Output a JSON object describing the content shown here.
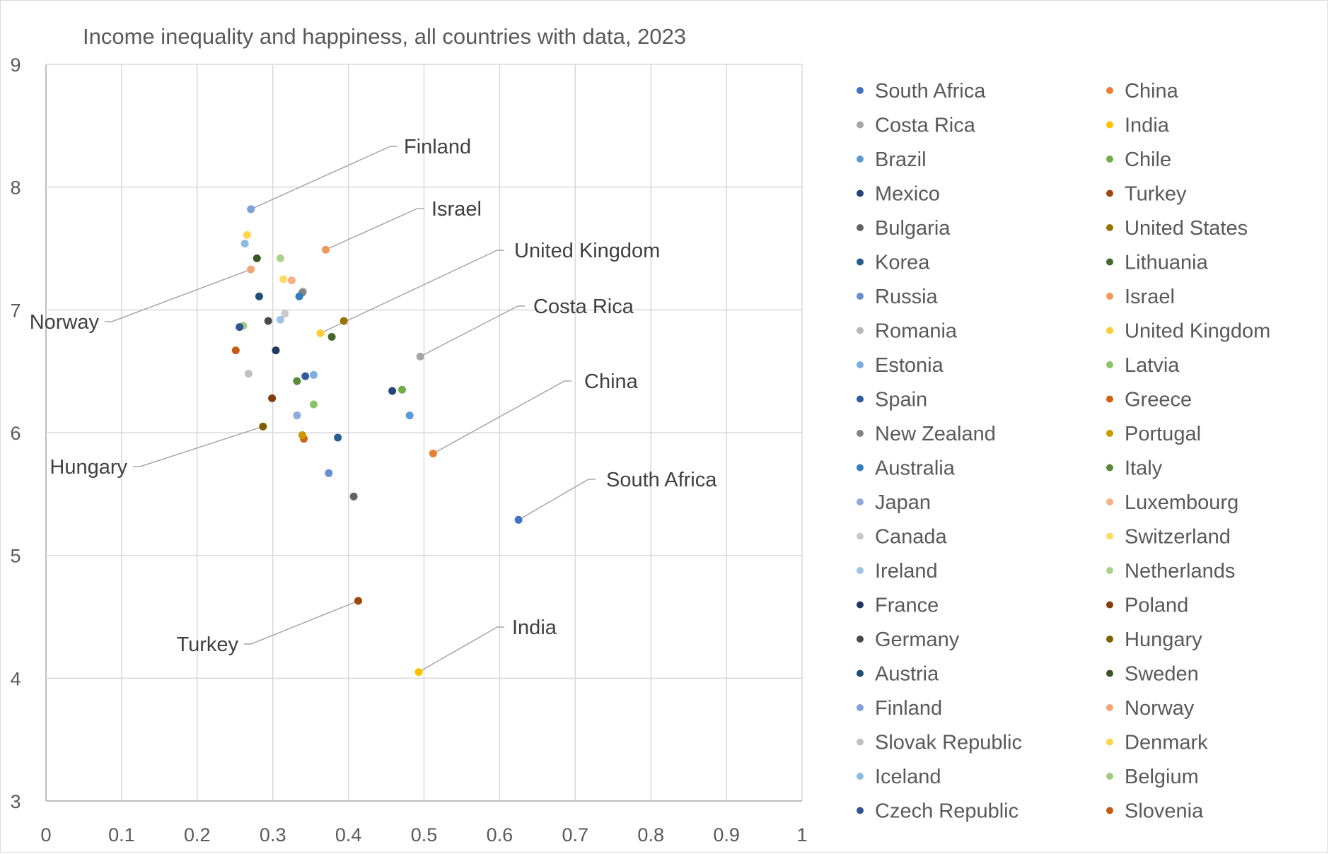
{
  "chart_data": {
    "type": "scatter",
    "title": "Income inequality and happiness, all countries with data, 2023",
    "xlabel": "",
    "ylabel": "",
    "xlim": [
      0,
      1
    ],
    "ylim": [
      3,
      9
    ],
    "x_ticks": [
      "0",
      "0.1",
      "0.2",
      "0.3",
      "0.4",
      "0.5",
      "0.6",
      "0.7",
      "0.8",
      "0.9",
      "1"
    ],
    "y_ticks": [
      "3",
      "4",
      "5",
      "6",
      "7",
      "8",
      "9"
    ],
    "grid": true,
    "legend_position": "right",
    "series": [
      {
        "name": "South Africa",
        "color": "#4472c4",
        "x": 0.625,
        "y": 5.29,
        "label": "South Africa"
      },
      {
        "name": "China",
        "color": "#ed7d31",
        "x": 0.512,
        "y": 5.83,
        "label": "China"
      },
      {
        "name": "Costa Rica",
        "color": "#a5a5a5",
        "x": 0.495,
        "y": 6.62,
        "label": "Costa Rica"
      },
      {
        "name": "India",
        "color": "#ffc000",
        "x": 0.493,
        "y": 4.05,
        "label": "India"
      },
      {
        "name": "Brazil",
        "color": "#5b9bd5",
        "x": 0.481,
        "y": 6.14
      },
      {
        "name": "Chile",
        "color": "#70ad47",
        "x": 0.471,
        "y": 6.35
      },
      {
        "name": "Mexico",
        "color": "#264478",
        "x": 0.458,
        "y": 6.34
      },
      {
        "name": "Turkey",
        "color": "#9e480e",
        "x": 0.413,
        "y": 4.63,
        "label": "Turkey"
      },
      {
        "name": "Bulgaria",
        "color": "#636363",
        "x": 0.407,
        "y": 5.48
      },
      {
        "name": "United States",
        "color": "#997300",
        "x": 0.394,
        "y": 6.91
      },
      {
        "name": "Korea",
        "color": "#255e91",
        "x": 0.386,
        "y": 5.96
      },
      {
        "name": "Lithuania",
        "color": "#43682b",
        "x": 0.378,
        "y": 6.78
      },
      {
        "name": "Russia",
        "color": "#698ed0",
        "x": 0.374,
        "y": 5.67
      },
      {
        "name": "Israel",
        "color": "#f1975a",
        "x": 0.37,
        "y": 7.49,
        "label": "Israel"
      },
      {
        "name": "Romania",
        "color": "#b7b7b7",
        "x": 0.34,
        "y": 7.15
      },
      {
        "name": "United Kingdom",
        "color": "#ffcd33",
        "x": 0.363,
        "y": 6.81,
        "label": "United Kingdom"
      },
      {
        "name": "Estonia",
        "color": "#7cafdd",
        "x": 0.354,
        "y": 6.47
      },
      {
        "name": "Latvia",
        "color": "#8cc168",
        "x": 0.354,
        "y": 6.23
      },
      {
        "name": "Spain",
        "color": "#335aa1",
        "x": 0.343,
        "y": 6.46
      },
      {
        "name": "Greece",
        "color": "#d26012",
        "x": 0.341,
        "y": 5.95
      },
      {
        "name": "New Zealand",
        "color": "#848484",
        "x": 0.339,
        "y": 7.14
      },
      {
        "name": "Portugal",
        "color": "#cc9a00",
        "x": 0.339,
        "y": 5.98
      },
      {
        "name": "Australia",
        "color": "#327dc2",
        "x": 0.335,
        "y": 7.11
      },
      {
        "name": "Italy",
        "color": "#5a8a39",
        "x": 0.332,
        "y": 6.42
      },
      {
        "name": "Japan",
        "color": "#8faadc",
        "x": 0.332,
        "y": 6.14
      },
      {
        "name": "Luxembourg",
        "color": "#f4b183",
        "x": 0.325,
        "y": 7.24
      },
      {
        "name": "Canada",
        "color": "#c9c9c9",
        "x": 0.316,
        "y": 6.97
      },
      {
        "name": "Switzerland",
        "color": "#ffd966",
        "x": 0.314,
        "y": 7.25
      },
      {
        "name": "Ireland",
        "color": "#9dc3e6",
        "x": 0.31,
        "y": 6.92
      },
      {
        "name": "Netherlands",
        "color": "#a9d18e",
        "x": 0.31,
        "y": 7.42
      },
      {
        "name": "France",
        "color": "#1f3864",
        "x": 0.304,
        "y": 6.67
      },
      {
        "name": "Poland",
        "color": "#843c0c",
        "x": 0.299,
        "y": 6.28
      },
      {
        "name": "Germany",
        "color": "#4a4a4a",
        "x": 0.294,
        "y": 6.91
      },
      {
        "name": "Hungary",
        "color": "#7f6000",
        "x": 0.287,
        "y": 6.05,
        "label": "Hungary"
      },
      {
        "name": "Austria",
        "color": "#1f4e79",
        "x": 0.282,
        "y": 7.11
      },
      {
        "name": "Sweden",
        "color": "#375623",
        "x": 0.279,
        "y": 7.42
      },
      {
        "name": "Finland",
        "color": "#7f9fd8",
        "x": 0.271,
        "y": 7.82,
        "label": "Finland"
      },
      {
        "name": "Norway",
        "color": "#f2a478",
        "x": 0.271,
        "y": 7.33,
        "label": "Norway"
      },
      {
        "name": "Slovak Republic",
        "color": "#c0c0c0",
        "x": 0.268,
        "y": 6.48
      },
      {
        "name": "Denmark",
        "color": "#ffd447",
        "x": 0.266,
        "y": 7.61
      },
      {
        "name": "Iceland",
        "color": "#8cbbe3",
        "x": 0.263,
        "y": 7.54
      },
      {
        "name": "Belgium",
        "color": "#9fcc80",
        "x": 0.261,
        "y": 6.87
      },
      {
        "name": "Czech Republic",
        "color": "#2f5597",
        "x": 0.256,
        "y": 6.86
      },
      {
        "name": "Slovenia",
        "color": "#c55a11",
        "x": 0.251,
        "y": 6.67
      }
    ],
    "legend": {
      "left": [
        "South Africa",
        "Costa Rica",
        "Brazil",
        "Mexico",
        "Bulgaria",
        "Korea",
        "Russia",
        "Romania",
        "Estonia",
        "Spain",
        "New Zealand",
        "Australia",
        "Japan",
        "Canada",
        "Ireland",
        "France",
        "Germany",
        "Austria",
        "Finland",
        "Slovak Republic",
        "Iceland",
        "Czech Republic"
      ],
      "right": [
        "China",
        "India",
        "Chile",
        "Turkey",
        "United States",
        "Lithuania",
        "Israel",
        "United Kingdom",
        "Latvia",
        "Greece",
        "Portugal",
        "Italy",
        "Luxembourg",
        "Switzerland",
        "Netherlands",
        "Poland",
        "Hungary",
        "Sweden",
        "Norway",
        "Denmark",
        "Belgium",
        "Slovenia"
      ]
    }
  }
}
